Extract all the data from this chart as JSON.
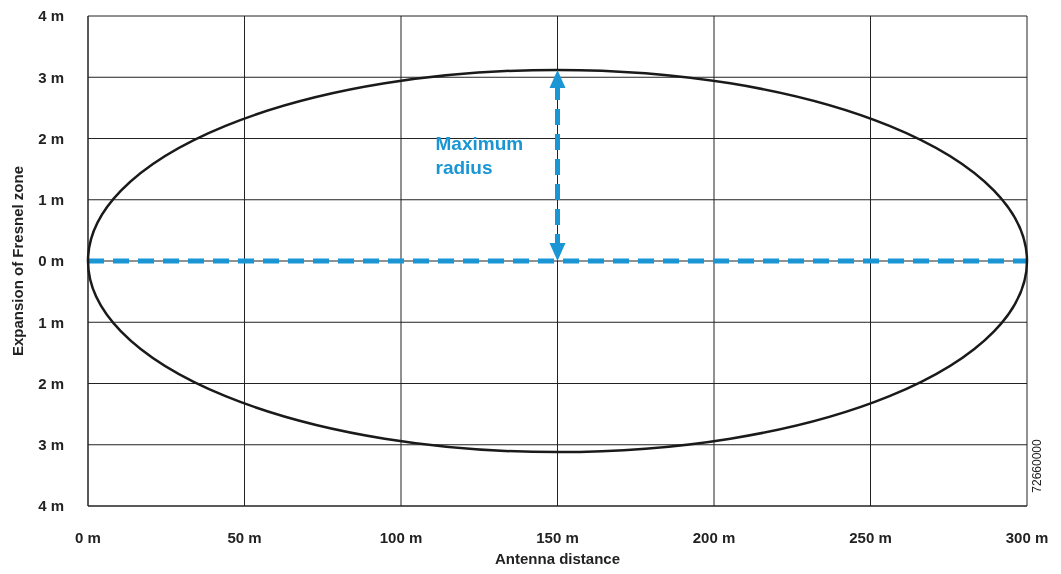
{
  "chart_data": {
    "type": "line",
    "xlabel": "Antenna distance",
    "ylabel": "Expansion of Fresnel zone",
    "xlim": [
      0,
      300
    ],
    "ylim": [
      -4,
      4
    ],
    "xticks": [
      {
        "value": 0,
        "label": "0 m"
      },
      {
        "value": 50,
        "label": "50 m"
      },
      {
        "value": 100,
        "label": "100 m"
      },
      {
        "value": 150,
        "label": "150 m"
      },
      {
        "value": 200,
        "label": "200 m"
      },
      {
        "value": 250,
        "label": "250 m"
      },
      {
        "value": 300,
        "label": "300 m"
      }
    ],
    "yticks": [
      {
        "value": -4,
        "label": "4 m"
      },
      {
        "value": -3,
        "label": "3 m"
      },
      {
        "value": -2,
        "label": "2 m"
      },
      {
        "value": -1,
        "label": "1 m"
      },
      {
        "value": 0,
        "label": "0 m"
      },
      {
        "value": 1,
        "label": "1 m"
      },
      {
        "value": 2,
        "label": "2 m"
      },
      {
        "value": 3,
        "label": "3 m"
      },
      {
        "value": 4,
        "label": "4 m"
      }
    ],
    "grid": true,
    "marker": "none",
    "series": [
      {
        "type": "line",
        "color": "#1a96d4",
        "line_style": "dashed",
        "x": [
          0,
          300
        ],
        "values": [
          0,
          0
        ]
      }
    ],
    "annotations": [
      "Maximum radius",
      "72660000"
    ]
  }
}
